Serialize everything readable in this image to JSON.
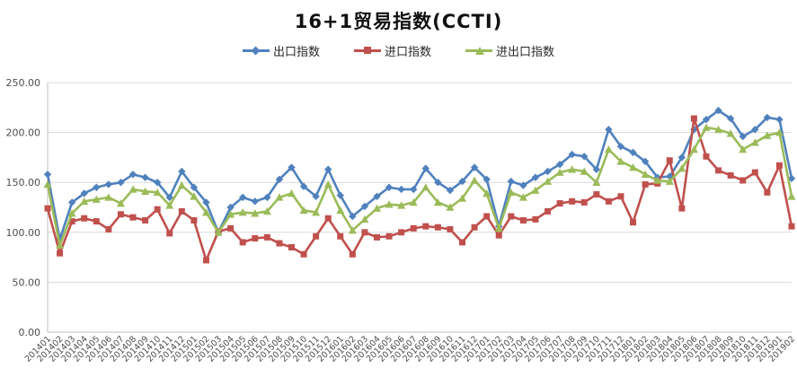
{
  "chart_data": {
    "type": "line",
    "title": "16+1贸易指数(CCTI)",
    "legend_position": "top-center",
    "grid": "horizontal",
    "gridline_color": "#d9d9d9",
    "axis_line_color": "#bfbfbf",
    "ylim": [
      0,
      250
    ],
    "y_tick_step": 50,
    "y_tick_labels": [
      "0.00",
      "50.00",
      "100.00",
      "150.00",
      "200.00",
      "250.00"
    ],
    "categories": [
      "201401",
      "201402",
      "201403",
      "201404",
      "201405",
      "201406",
      "201407",
      "201408",
      "201409",
      "201410",
      "201411",
      "201412",
      "201501",
      "201502",
      "201503",
      "201504",
      "201505",
      "201506",
      "201507",
      "201508",
      "201509",
      "201510",
      "201511",
      "201512",
      "201601",
      "201602",
      "201603",
      "201604",
      "201605",
      "201606",
      "201607",
      "201608",
      "201609",
      "201610",
      "201611",
      "201612",
      "201701",
      "201702",
      "201703",
      "201704",
      "201705",
      "201706",
      "201707",
      "201708",
      "201709",
      "201710",
      "201711",
      "201712",
      "201801",
      "201802",
      "201803",
      "201804",
      "201805",
      "201806",
      "201807",
      "201808",
      "201809",
      "201810",
      "201811",
      "201812",
      "201901",
      "201902"
    ],
    "series": [
      {
        "name": "出口指数",
        "key": "export-index",
        "color": "#4F81BD",
        "marker": "diamond",
        "values": [
          158,
          93,
          130,
          139,
          145,
          148,
          150,
          158,
          155,
          150,
          135,
          161,
          145,
          130,
          100,
          125,
          135,
          131,
          135,
          153,
          165,
          146,
          136,
          163,
          137,
          116,
          126,
          136,
          145,
          143,
          143,
          164,
          150,
          142,
          151,
          165,
          153,
          106,
          151,
          147,
          155,
          161,
          168,
          178,
          176,
          163,
          203,
          186,
          180,
          171,
          155,
          156,
          175,
          203,
          213,
          222,
          214,
          196,
          203,
          215,
          213,
          154
        ]
      },
      {
        "name": "进口指数",
        "key": "import-index",
        "color": "#C0504D",
        "marker": "square",
        "values": [
          124,
          79,
          111,
          114,
          111,
          103,
          118,
          115,
          112,
          123,
          99,
          121,
          112,
          72,
          101,
          104,
          90,
          94,
          95,
          89,
          85,
          78,
          96,
          114,
          96,
          78,
          100,
          95,
          96,
          100,
          104,
          106,
          105,
          103,
          90,
          105,
          116,
          97,
          116,
          112,
          113,
          121,
          129,
          131,
          130,
          138,
          131,
          136,
          110,
          148,
          149,
          172,
          124,
          214,
          176,
          162,
          157,
          152,
          160,
          140,
          167,
          106
        ]
      },
      {
        "name": "进出口指数",
        "key": "import-export-index",
        "color": "#9BBB59",
        "marker": "triangle",
        "values": [
          148,
          87,
          119,
          131,
          133,
          135,
          129,
          143,
          141,
          140,
          127,
          147,
          136,
          120,
          100,
          118,
          120,
          119,
          121,
          135,
          139,
          122,
          120,
          148,
          122,
          102,
          113,
          124,
          128,
          127,
          130,
          145,
          130,
          125,
          134,
          152,
          139,
          104,
          140,
          135,
          142,
          151,
          160,
          163,
          161,
          150,
          183,
          171,
          165,
          158,
          152,
          151,
          164,
          183,
          205,
          203,
          199,
          183,
          190,
          197,
          200,
          136
        ]
      }
    ]
  }
}
